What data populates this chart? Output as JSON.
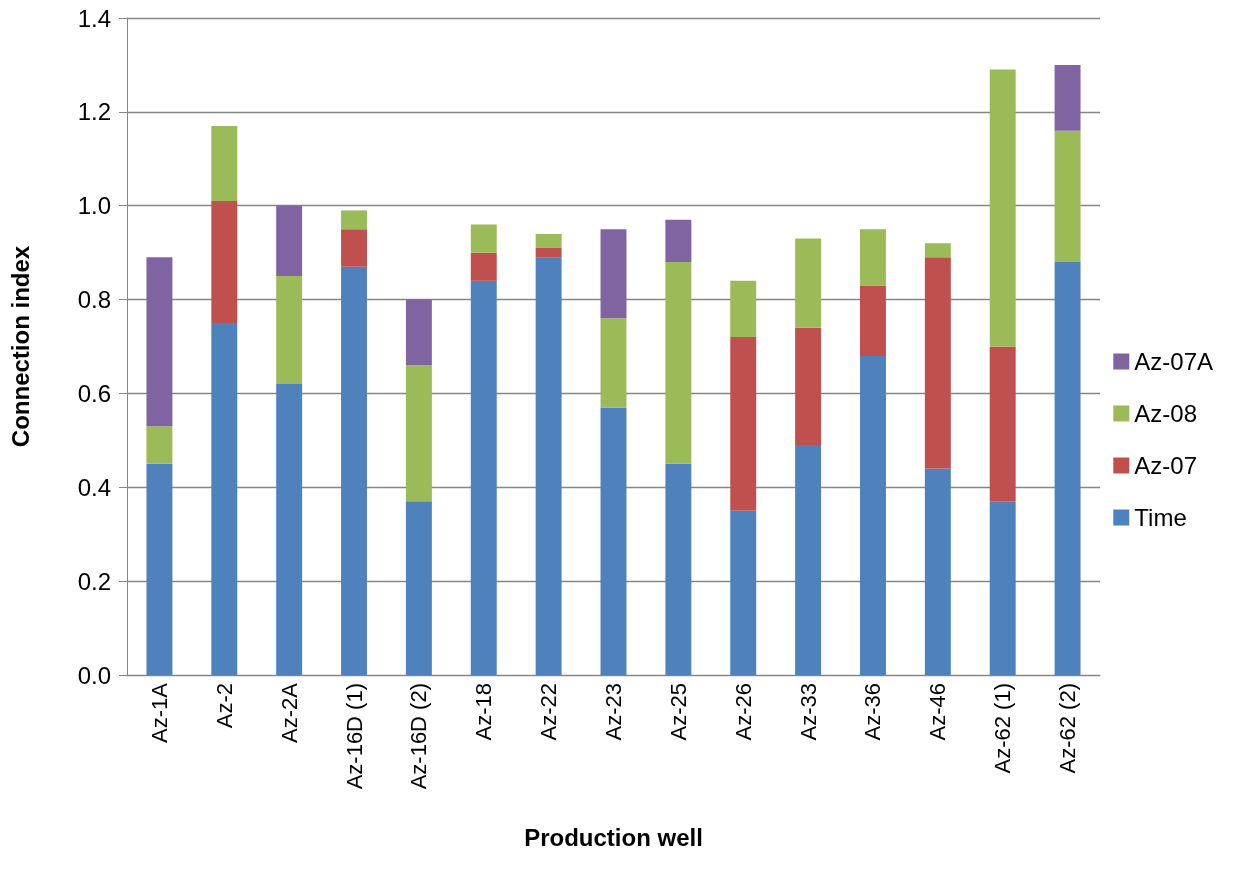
{
  "chart_data": {
    "type": "bar",
    "stacked": true,
    "xlabel": "Production well",
    "ylabel": "Connection index",
    "categories": [
      "Az-1A",
      "Az-2",
      "Az-2A",
      "Az-16D (1)",
      "Az-16D (2)",
      "Az-18",
      "Az-22",
      "Az-23",
      "Az-25",
      "Az-26",
      "Az-33",
      "Az-36",
      "Az-46",
      "Az-62 (1)",
      "Az-62 (2)"
    ],
    "series": [
      {
        "name": "Time",
        "color": "#4f81bd",
        "values": [
          0.45,
          0.75,
          0.62,
          0.87,
          0.37,
          0.84,
          0.89,
          0.57,
          0.45,
          0.35,
          0.49,
          0.68,
          0.44,
          0.37,
          0.88
        ]
      },
      {
        "name": "Az-07",
        "color": "#c0504d",
        "values": [
          null,
          0.26,
          null,
          0.08,
          null,
          0.06,
          0.02,
          null,
          null,
          0.37,
          0.25,
          0.15,
          0.45,
          0.33,
          null
        ]
      },
      {
        "name": "Az-08",
        "color": "#9bbb59",
        "values": [
          0.08,
          0.16,
          0.23,
          0.04,
          0.29,
          0.06,
          0.03,
          0.19,
          0.43,
          0.12,
          0.19,
          0.12,
          0.03,
          0.59,
          0.28
        ]
      },
      {
        "name": "Az-07A",
        "color": "#8064a2",
        "values": [
          0.36,
          null,
          0.15,
          null,
          0.14,
          null,
          null,
          0.19,
          0.09,
          null,
          null,
          null,
          null,
          null,
          0.14
        ]
      }
    ],
    "ylim": [
      0,
      1.4
    ],
    "yticks": [
      {
        "value": 0,
        "label": "0.0"
      },
      {
        "value": 0.2,
        "label": "0.2"
      },
      {
        "value": 0.4,
        "label": "0.4"
      },
      {
        "value": 0.6,
        "label": "0.6"
      },
      {
        "value": 0.8,
        "label": "0.8"
      },
      {
        "value": 1,
        "label": "1.0"
      },
      {
        "value": 1.2,
        "label": "1.2"
      },
      {
        "value": 1.4,
        "label": "1.4"
      }
    ],
    "grid": "y",
    "legend": "right"
  }
}
